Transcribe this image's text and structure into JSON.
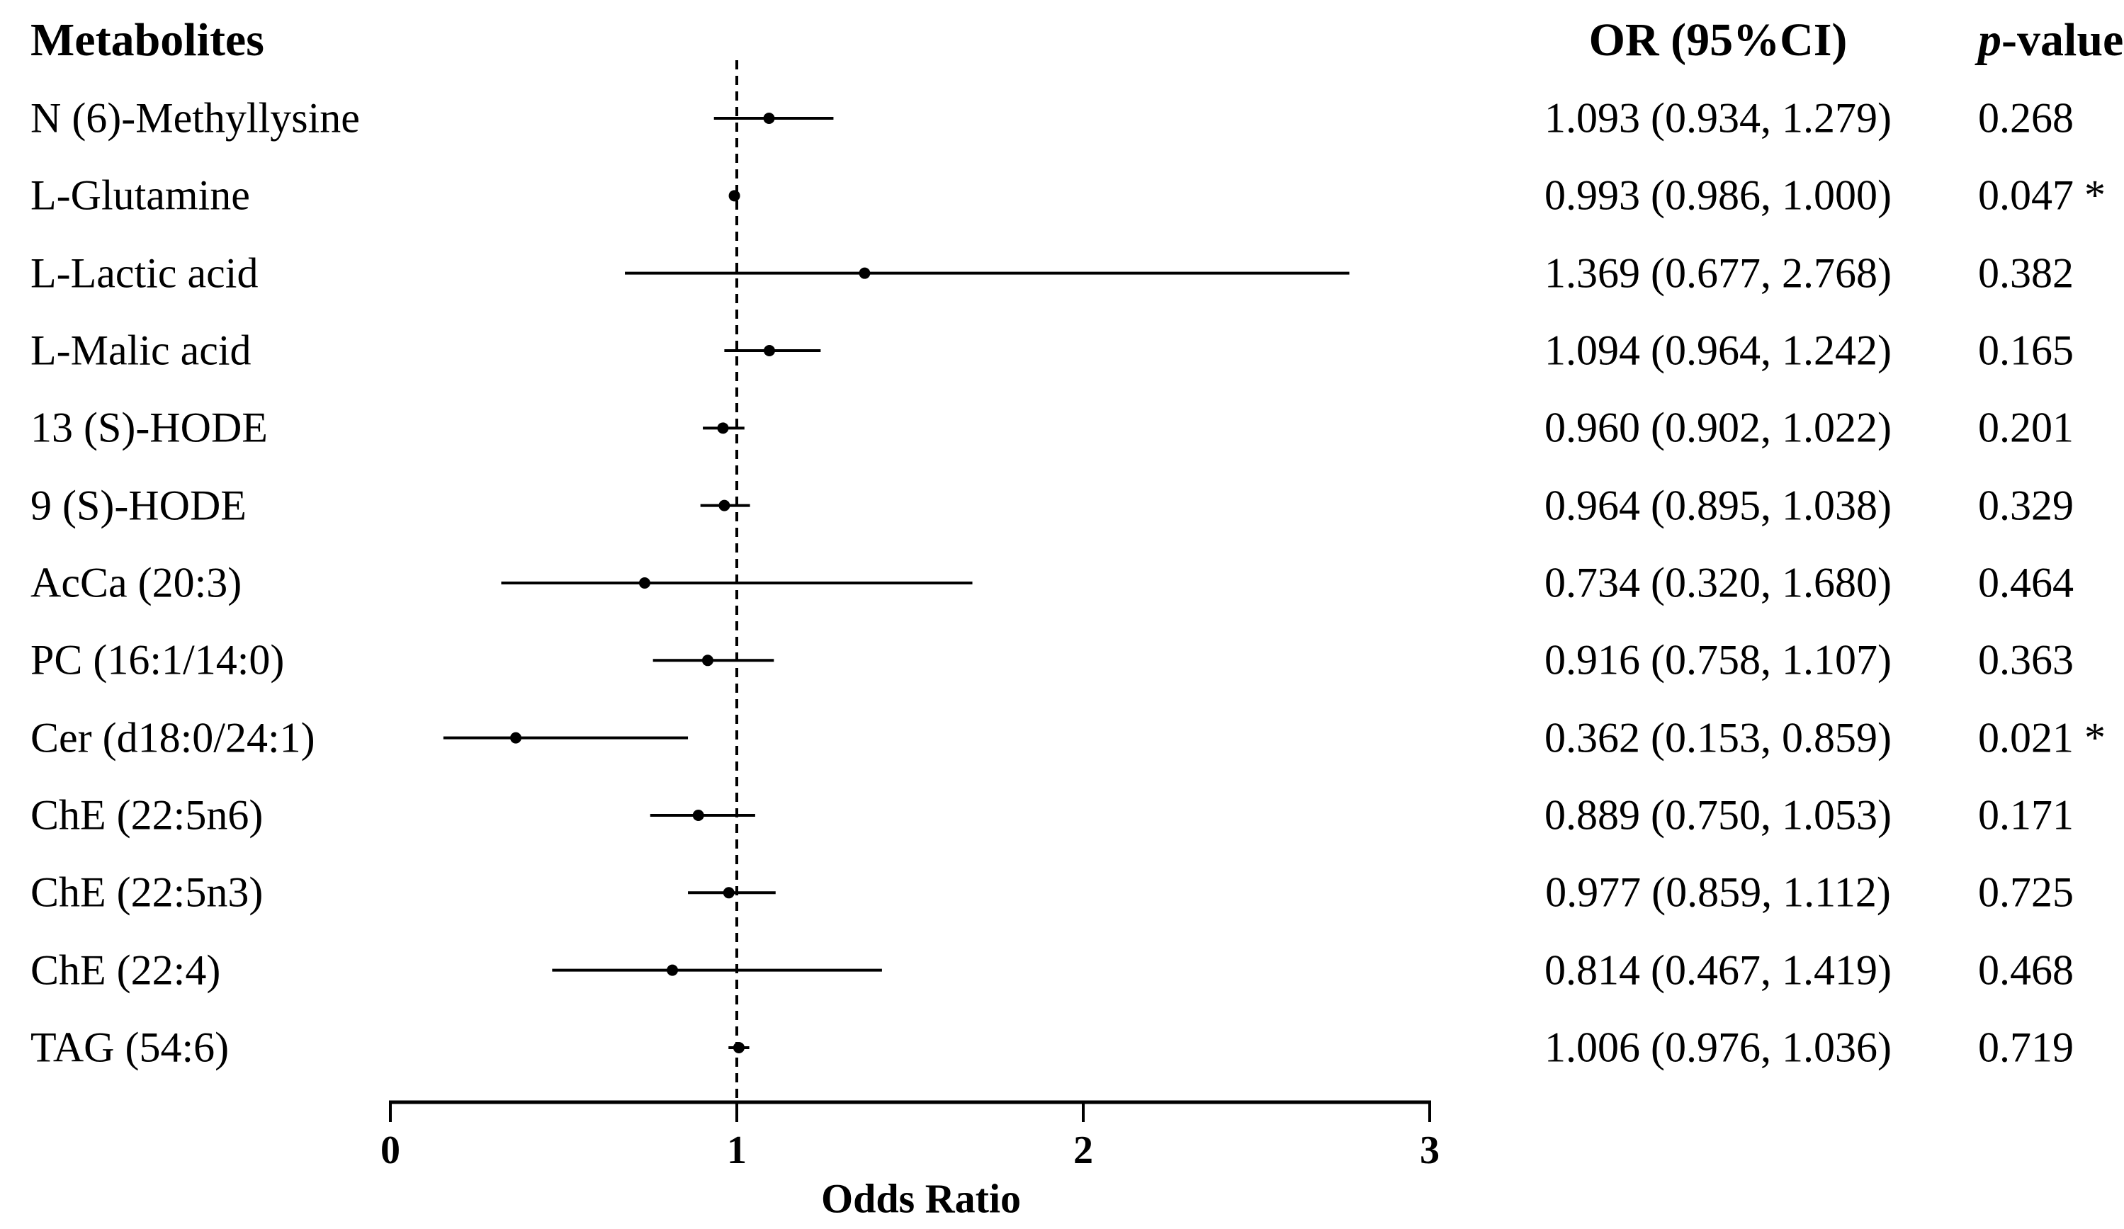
{
  "headers": {
    "metabolites": "Metabolites",
    "or_ci": "OR (95%CI)",
    "p_italic": "p",
    "p_rest": "-value"
  },
  "axis": {
    "xlabel": "Odds Ratio",
    "tick_labels": [
      "0",
      "1",
      "2",
      "3"
    ],
    "tick_values": [
      0,
      1,
      2,
      3
    ]
  },
  "colors": {
    "foreground": "#000000",
    "background": "#ffffff"
  },
  "chart_data": {
    "type": "scatter",
    "subtype": "forest-plot",
    "title": "",
    "xlabel": "Odds Ratio",
    "xlim": [
      0,
      3
    ],
    "xticks": [
      0,
      1,
      2,
      3
    ],
    "reference_line": 1,
    "grid": false,
    "rows": [
      {
        "label": "N (6)-Methyllysine",
        "or": 1.093,
        "ci_low": 0.934,
        "ci_high": 1.279,
        "or_ci": "1.093 (0.934, 1.279)",
        "p": "0.268",
        "significant": false
      },
      {
        "label": "L-Glutamine",
        "or": 0.993,
        "ci_low": 0.986,
        "ci_high": 1.0,
        "or_ci": "0.993 (0.986, 1.000)",
        "p": "0.047 *",
        "significant": true
      },
      {
        "label": "L-Lactic acid",
        "or": 1.369,
        "ci_low": 0.677,
        "ci_high": 2.768,
        "or_ci": "1.369 (0.677, 2.768)",
        "p": "0.382",
        "significant": false
      },
      {
        "label": "L-Malic acid",
        "or": 1.094,
        "ci_low": 0.964,
        "ci_high": 1.242,
        "or_ci": "1.094 (0.964, 1.242)",
        "p": "0.165",
        "significant": false
      },
      {
        "label": "13 (S)-HODE",
        "or": 0.96,
        "ci_low": 0.902,
        "ci_high": 1.022,
        "or_ci": "0.960 (0.902, 1.022)",
        "p": "0.201",
        "significant": false
      },
      {
        "label": "9 (S)-HODE",
        "or": 0.964,
        "ci_low": 0.895,
        "ci_high": 1.038,
        "or_ci": "0.964 (0.895, 1.038)",
        "p": "0.329",
        "significant": false
      },
      {
        "label": "AcCa (20:3)",
        "or": 0.734,
        "ci_low": 0.32,
        "ci_high": 1.68,
        "or_ci": "0.734 (0.320, 1.680)",
        "p": "0.464",
        "significant": false
      },
      {
        "label": "PC (16:1/14:0)",
        "or": 0.916,
        "ci_low": 0.758,
        "ci_high": 1.107,
        "or_ci": "0.916 (0.758, 1.107)",
        "p": "0.363",
        "significant": false
      },
      {
        "label": "Cer (d18:0/24:1)",
        "or": 0.362,
        "ci_low": 0.153,
        "ci_high": 0.859,
        "or_ci": "0.362 (0.153, 0.859)",
        "p": "0.021 *",
        "significant": true
      },
      {
        "label": "ChE (22:5n6)",
        "or": 0.889,
        "ci_low": 0.75,
        "ci_high": 1.053,
        "or_ci": "0.889 (0.750, 1.053)",
        "p": "0.171",
        "significant": false
      },
      {
        "label": "ChE (22:5n3)",
        "or": 0.977,
        "ci_low": 0.859,
        "ci_high": 1.112,
        "or_ci": "0.977 (0.859, 1.112)",
        "p": "0.725",
        "significant": false
      },
      {
        "label": "ChE (22:4)",
        "or": 0.814,
        "ci_low": 0.467,
        "ci_high": 1.419,
        "or_ci": "0.814 (0.467, 1.419)",
        "p": "0.468",
        "significant": false
      },
      {
        "label": "TAG (54:6)",
        "or": 1.006,
        "ci_low": 0.976,
        "ci_high": 1.036,
        "or_ci": "1.006 (0.976, 1.036)",
        "p": "0.719",
        "significant": false
      }
    ]
  }
}
